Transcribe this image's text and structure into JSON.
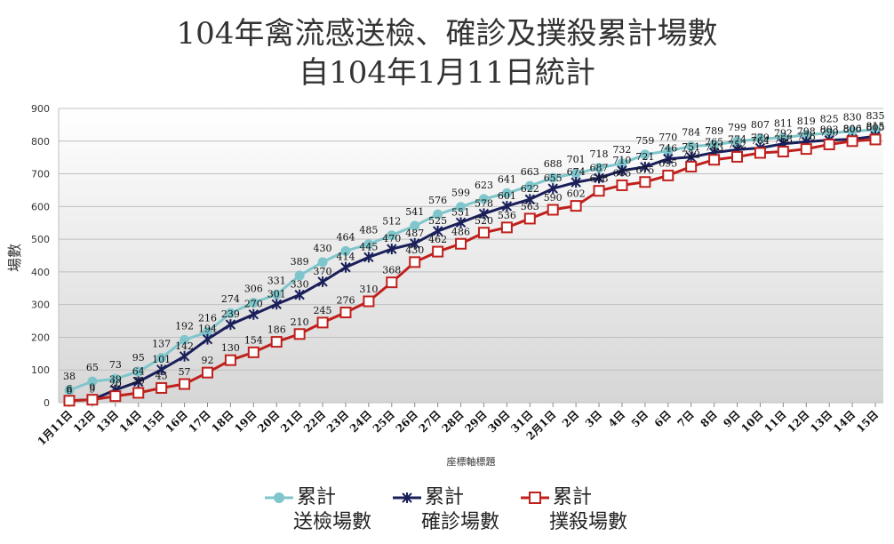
{
  "chart_data": {
    "type": "line",
    "title_line1": "104年禽流感送檢、確診及撲殺累計場數",
    "title_line2": "自104年1月11日統計",
    "xlabel": "座標軸標題",
    "ylabel": "場數",
    "ylim": [
      0,
      900
    ],
    "yticks": [
      "0",
      "100",
      "200",
      "300",
      "400",
      "500",
      "600",
      "700",
      "800",
      "900"
    ],
    "categories": [
      "1月11日",
      "12日",
      "13日",
      "14日",
      "15日",
      "16日",
      "17日",
      "18日",
      "19日",
      "20日",
      "21日",
      "22日",
      "23日",
      "24日",
      "25日",
      "26日",
      "27日",
      "28日",
      "29日",
      "30日",
      "31日",
      "2月1日",
      "2日",
      "3日",
      "4日",
      "5日",
      "6日",
      "7日",
      "8日",
      "9日",
      "10日",
      "11日",
      "12日",
      "13日",
      "14日",
      "15日"
    ],
    "series": [
      {
        "name": "累計送檢場數",
        "legend_line1": "累計",
        "legend_line2": "送檢場數",
        "color": "#7fc6cc",
        "values": [
          38,
          65,
          73,
          95,
          137,
          192,
          216,
          274,
          306,
          331,
          389,
          430,
          464,
          485,
          512,
          541,
          576,
          599,
          623,
          641,
          663,
          688,
          701,
          718,
          732,
          759,
          770,
          784,
          789,
          799,
          807,
          811,
          819,
          825,
          830,
          835
        ]
      },
      {
        "name": "累計確診場數",
        "legend_line1": "累計",
        "legend_line2": "確診場數",
        "color": "#1a1f5a",
        "values": [
          6,
          9,
          39,
          64,
          101,
          142,
          194,
          239,
          270,
          301,
          330,
          370,
          414,
          445,
          470,
          487,
          525,
          551,
          578,
          601,
          622,
          655,
          674,
          687,
          710,
          721,
          746,
          751,
          765,
          774,
          779,
          792,
          798,
          803,
          806,
          815
        ]
      },
      {
        "name": "累計撲殺場數",
        "legend_line1": "累計",
        "legend_line2": "撲殺場數",
        "color": "#c0201c",
        "values": [
          6,
          9,
          20,
          30,
          45,
          57,
          92,
          130,
          154,
          186,
          210,
          245,
          276,
          310,
          368,
          430,
          462,
          486,
          520,
          536,
          563,
          590,
          602,
          648,
          665,
          675,
          695,
          722,
          743,
          752,
          764,
          768,
          776,
          790,
          800,
          805
        ]
      }
    ]
  }
}
